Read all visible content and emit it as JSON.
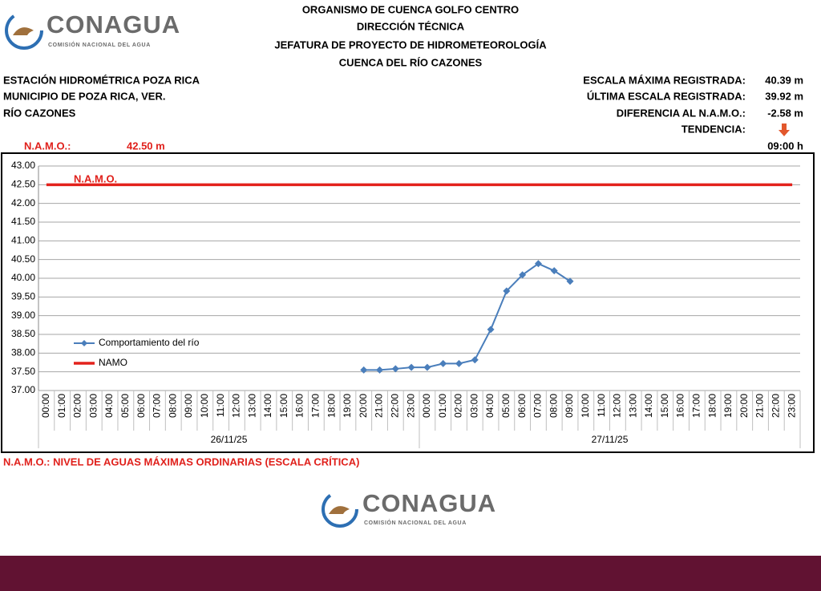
{
  "logo_top": {
    "name": "CONAGUA",
    "subtitle": "COMISIÓN NACIONAL DEL AGUA"
  },
  "header": {
    "lines": [
      "ORGANISMO DE CUENCA GOLFO CENTRO",
      "DIRECCIÓN TÉCNICA",
      "JEFATURA DE PROYECTO DE HIDROMETEOROLOGÍA",
      "CUENCA DEL RÍO CAZONES"
    ]
  },
  "station": {
    "lines": [
      "ESTACIÓN HIDROMÉTRICA POZA RICA",
      "MUNICIPIO DE POZA RICA, VER.",
      "RÍO CAZONES"
    ]
  },
  "stats": {
    "rows": [
      {
        "label": "ESCALA MÁXIMA REGISTRADA:",
        "value": "40.39 m"
      },
      {
        "label": "ÚLTIMA ESCALA REGISTRADA:",
        "value": "39.92 m"
      },
      {
        "label": "DIFERENCIA AL N.A.M.O.:",
        "value": "-2.58 m"
      }
    ],
    "trend_label": "TENDENCIA:",
    "hour": "09:00 h"
  },
  "namo": {
    "label": "N.A.M.O.:",
    "value": "42.50 m"
  },
  "chart_data": {
    "type": "line",
    "annotation": "N.A.M.O.",
    "categories": [
      "00:00",
      "01:00",
      "02:00",
      "03:00",
      "04:00",
      "05:00",
      "06:00",
      "07:00",
      "08:00",
      "09:00",
      "10:00",
      "11:00",
      "12:00",
      "13:00",
      "14:00",
      "15:00",
      "16:00",
      "17:00",
      "18:00",
      "19:00",
      "20:00",
      "21:00",
      "22:00",
      "23:00",
      "00:00",
      "01:00",
      "02:00",
      "03:00",
      "04:00",
      "05:00",
      "06:00",
      "07:00",
      "08:00",
      "09:00",
      "10:00",
      "11:00",
      "12:00",
      "13:00",
      "14:00",
      "15:00",
      "16:00",
      "17:00",
      "18:00",
      "19:00",
      "20:00",
      "21:00",
      "22:00",
      "23:00"
    ],
    "x_groups": [
      "26/11/25",
      "27/11/25"
    ],
    "series": [
      {
        "name": "Comportamiento del río",
        "color": "#4a7ebb",
        "marker": "diamond",
        "values": [
          null,
          null,
          null,
          null,
          null,
          null,
          null,
          null,
          null,
          null,
          null,
          null,
          null,
          null,
          null,
          null,
          null,
          null,
          null,
          null,
          37.55,
          37.55,
          37.58,
          37.62,
          37.62,
          37.72,
          37.72,
          37.82,
          38.63,
          39.66,
          40.09,
          40.39,
          40.2,
          39.92,
          null,
          null,
          null,
          null,
          null,
          null,
          null,
          null,
          null,
          null,
          null,
          null,
          null,
          null
        ]
      },
      {
        "name": "NAMO",
        "color": "#e3221c",
        "values": [
          42.5,
          42.5,
          42.5,
          42.5,
          42.5,
          42.5,
          42.5,
          42.5,
          42.5,
          42.5,
          42.5,
          42.5,
          42.5,
          42.5,
          42.5,
          42.5,
          42.5,
          42.5,
          42.5,
          42.5,
          42.5,
          42.5,
          42.5,
          42.5,
          42.5,
          42.5,
          42.5,
          42.5,
          42.5,
          42.5,
          42.5,
          42.5,
          42.5,
          42.5,
          42.5,
          42.5,
          42.5,
          42.5,
          42.5,
          42.5,
          42.5,
          42.5,
          42.5,
          42.5,
          42.5,
          42.5,
          42.5,
          42.5
        ]
      }
    ],
    "ylim": [
      37,
      43
    ],
    "yticks": [
      {
        "value": 37,
        "label": "37.00"
      },
      {
        "value": 37.5,
        "label": "37.50"
      },
      {
        "value": 38,
        "label": "38.00"
      },
      {
        "value": 38.5,
        "label": "38.50"
      },
      {
        "value": 39,
        "label": "39.00"
      },
      {
        "value": 39.5,
        "label": "39.50"
      },
      {
        "value": 40,
        "label": "40.00"
      },
      {
        "value": 40.5,
        "label": "40.50"
      },
      {
        "value": 41,
        "label": "41.00"
      },
      {
        "value": 41.5,
        "label": "41.50"
      },
      {
        "value": 42,
        "label": "42.00"
      },
      {
        "value": 42.5,
        "label": "42.50"
      },
      {
        "value": 43,
        "label": "43.00"
      }
    ],
    "grid": true,
    "legend": "left"
  },
  "footnote": "N.A.M.O.: NIVEL DE AGUAS MÁXIMAS ORDINARIAS (ESCALA CRÍTICA)",
  "logo_bottom": {
    "name": "CONAGUA",
    "subtitle": "COMISIÓN NACIONAL DEL AGUA"
  }
}
